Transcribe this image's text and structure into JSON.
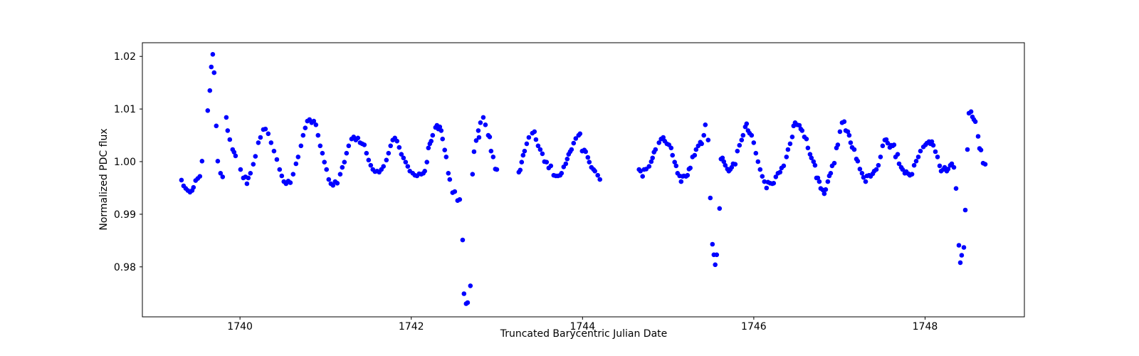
{
  "chart_data": {
    "type": "scatter",
    "title": "",
    "xlabel": "Truncated Barycentric Julian Date",
    "ylabel": "Normalized PDC flux",
    "xlim": [
      1738.86,
      1749.16
    ],
    "ylim": [
      0.9705,
      1.0226
    ],
    "xticks": [
      1740,
      1742,
      1744,
      1746,
      1748
    ],
    "xtick_labels": [
      "1740",
      "1742",
      "1744",
      "1746",
      "1748"
    ],
    "yticks": [
      0.98,
      0.99,
      1.0,
      1.01,
      1.02
    ],
    "ytick_labels": [
      "0.98",
      "0.99",
      "1.00",
      "1.01",
      "1.02"
    ],
    "grid": false,
    "legend": null,
    "marker_color": "#0000ff",
    "background_color": "#ffffff",
    "spine_color": "#000000",
    "points": [
      [
        1739.316,
        0.9965
      ],
      [
        1739.341,
        0.9954
      ],
      [
        1739.366,
        0.9949
      ],
      [
        1739.391,
        0.9945
      ],
      [
        1739.416,
        0.9942
      ],
      [
        1739.441,
        0.9945
      ],
      [
        1739.457,
        0.9951
      ],
      [
        1739.482,
        0.9964
      ],
      [
        1739.507,
        0.9968
      ],
      [
        1739.532,
        0.9972
      ],
      [
        1739.557,
        1.0001
      ],
      [
        1739.623,
        1.0097
      ],
      [
        1739.648,
        1.0135
      ],
      [
        1739.665,
        1.018
      ],
      [
        1739.682,
        1.0204
      ],
      [
        1739.698,
        1.0169
      ],
      [
        1739.723,
        1.0068
      ],
      [
        1739.74,
        1.0001
      ],
      [
        1739.773,
        0.9978
      ],
      [
        1739.798,
        0.9971
      ],
      [
        1739.84,
        1.0084
      ],
      [
        1739.856,
        1.0059
      ],
      [
        1739.881,
        1.0042
      ],
      [
        1739.914,
        1.0023
      ],
      [
        1739.931,
        1.0018
      ],
      [
        1739.948,
        1.0011
      ],
      [
        1740.006,
        0.9985
      ],
      [
        1740.039,
        0.9969
      ],
      [
        1740.064,
        0.9971
      ],
      [
        1740.081,
        0.9958
      ],
      [
        1740.097,
        0.9969
      ],
      [
        1740.122,
        0.9978
      ],
      [
        1740.155,
        0.9995
      ],
      [
        1740.18,
        1.001
      ],
      [
        1740.214,
        1.0036
      ],
      [
        1740.239,
        1.0046
      ],
      [
        1740.272,
        1.0061
      ],
      [
        1740.297,
        1.0062
      ],
      [
        1740.33,
        1.0053
      ],
      [
        1740.363,
        1.0036
      ],
      [
        1740.397,
        1.002
      ],
      [
        1740.43,
        1.0004
      ],
      [
        1740.463,
        0.9985
      ],
      [
        1740.488,
        0.9973
      ],
      [
        1740.513,
        0.9962
      ],
      [
        1740.538,
        0.9958
      ],
      [
        1740.563,
        0.9963
      ],
      [
        1740.588,
        0.996
      ],
      [
        1740.621,
        0.9976
      ],
      [
        1740.654,
        0.9996
      ],
      [
        1740.679,
        1.0009
      ],
      [
        1740.712,
        1.003
      ],
      [
        1740.737,
        1.005
      ],
      [
        1740.762,
        1.0064
      ],
      [
        1740.787,
        1.0077
      ],
      [
        1740.812,
        1.008
      ],
      [
        1740.837,
        1.0074
      ],
      [
        1740.862,
        1.0077
      ],
      [
        1740.887,
        1.007
      ],
      [
        1740.912,
        1.005
      ],
      [
        1740.937,
        1.003
      ],
      [
        1740.962,
        1.0016
      ],
      [
        1740.986,
        0.9999
      ],
      [
        1741.011,
        0.9985
      ],
      [
        1741.036,
        0.9966
      ],
      [
        1741.061,
        0.9958
      ],
      [
        1741.086,
        0.9955
      ],
      [
        1741.111,
        0.9962
      ],
      [
        1741.136,
        0.9959
      ],
      [
        1741.17,
        0.9976
      ],
      [
        1741.194,
        0.9989
      ],
      [
        1741.219,
        0.9999
      ],
      [
        1741.244,
        1.0016
      ],
      [
        1741.269,
        1.003
      ],
      [
        1741.303,
        1.0043
      ],
      [
        1741.327,
        1.0047
      ],
      [
        1741.352,
        1.0041
      ],
      [
        1741.377,
        1.0045
      ],
      [
        1741.402,
        1.0036
      ],
      [
        1741.427,
        1.0034
      ],
      [
        1741.452,
        1.0032
      ],
      [
        1741.477,
        1.0016
      ],
      [
        1741.502,
        1.0003
      ],
      [
        1741.527,
        0.9993
      ],
      [
        1741.552,
        0.9985
      ],
      [
        1741.577,
        0.9981
      ],
      [
        1741.601,
        0.9982
      ],
      [
        1741.626,
        0.998
      ],
      [
        1741.651,
        0.9985
      ],
      [
        1741.676,
        0.9991
      ],
      [
        1741.71,
        1.0003
      ],
      [
        1741.735,
        1.0016
      ],
      [
        1741.759,
        1.003
      ],
      [
        1741.784,
        1.0041
      ],
      [
        1741.809,
        1.0045
      ],
      [
        1741.834,
        1.0039
      ],
      [
        1741.859,
        1.0027
      ],
      [
        1741.884,
        1.0014
      ],
      [
        1741.909,
        1.0007
      ],
      [
        1741.934,
        0.9999
      ],
      [
        1741.959,
        0.9991
      ],
      [
        1741.983,
        0.9982
      ],
      [
        1742.017,
        0.9978
      ],
      [
        1742.042,
        0.9974
      ],
      [
        1742.067,
        0.9973
      ],
      [
        1742.092,
        0.9977
      ],
      [
        1742.117,
        0.9976
      ],
      [
        1742.141,
        0.9978
      ],
      [
        1742.158,
        0.9982
      ],
      [
        1742.183,
        0.9999
      ],
      [
        1742.2,
        1.0026
      ],
      [
        1742.217,
        1.0034
      ],
      [
        1742.233,
        1.0039
      ],
      [
        1742.25,
        1.005
      ],
      [
        1742.283,
        1.0065
      ],
      [
        1742.3,
        1.0069
      ],
      [
        1742.316,
        1.0062
      ],
      [
        1742.333,
        1.0066
      ],
      [
        1742.35,
        1.0059
      ],
      [
        1742.366,
        1.0043
      ],
      [
        1742.391,
        1.0022
      ],
      [
        1742.408,
        1.0009
      ],
      [
        1742.433,
        0.9978
      ],
      [
        1742.45,
        0.9966
      ],
      [
        1742.483,
        0.9941
      ],
      [
        1742.508,
        0.9943
      ],
      [
        1742.541,
        0.9926
      ],
      [
        1742.566,
        0.9928
      ],
      [
        1742.6,
        0.9851
      ],
      [
        1742.616,
        0.9749
      ],
      [
        1742.641,
        0.973
      ],
      [
        1742.658,
        0.9732
      ],
      [
        1742.691,
        0.9764
      ],
      [
        1742.716,
        0.9976
      ],
      [
        1742.733,
        1.0019
      ],
      [
        1742.758,
        1.004
      ],
      [
        1742.783,
        1.0059
      ],
      [
        1742.791,
        1.0046
      ],
      [
        1742.808,
        1.0074
      ],
      [
        1742.841,
        1.0084
      ],
      [
        1742.866,
        1.007
      ],
      [
        1742.899,
        1.005
      ],
      [
        1742.916,
        1.0047
      ],
      [
        1742.932,
        1.002
      ],
      [
        1742.957,
        1.0009
      ],
      [
        1742.982,
        0.9986
      ],
      [
        1742.999,
        0.9985
      ],
      [
        1743.256,
        0.998
      ],
      [
        1743.273,
        0.9984
      ],
      [
        1743.289,
        0.9999
      ],
      [
        1743.306,
        1.0012
      ],
      [
        1743.323,
        1.002
      ],
      [
        1743.348,
        1.0034
      ],
      [
        1743.373,
        1.0046
      ],
      [
        1743.414,
        1.0054
      ],
      [
        1743.439,
        1.0057
      ],
      [
        1743.456,
        1.0042
      ],
      [
        1743.481,
        1.003
      ],
      [
        1743.506,
        1.0023
      ],
      [
        1743.531,
        1.0015
      ],
      [
        1743.555,
        1.0
      ],
      [
        1743.58,
        0.9999
      ],
      [
        1743.605,
        0.9988
      ],
      [
        1743.63,
        0.9992
      ],
      [
        1743.663,
        0.9974
      ],
      [
        1743.688,
        0.9973
      ],
      [
        1743.713,
        0.9973
      ],
      [
        1743.738,
        0.9974
      ],
      [
        1743.755,
        0.9978
      ],
      [
        1743.78,
        0.999
      ],
      [
        1743.805,
        0.9996
      ],
      [
        1743.821,
        1.0005
      ],
      [
        1743.838,
        1.0014
      ],
      [
        1743.855,
        1.0019
      ],
      [
        1743.871,
        1.0023
      ],
      [
        1743.896,
        1.0035
      ],
      [
        1743.921,
        1.0044
      ],
      [
        1743.954,
        1.005
      ],
      [
        1743.971,
        1.0053
      ],
      [
        1743.996,
        1.002
      ],
      [
        1744.021,
        1.0022
      ],
      [
        1744.037,
        1.0019
      ],
      [
        1744.062,
        1.0008
      ],
      [
        1744.079,
        0.9999
      ],
      [
        1744.104,
        0.9989
      ],
      [
        1744.129,
        0.9985
      ],
      [
        1744.145,
        0.9982
      ],
      [
        1744.178,
        0.9974
      ],
      [
        1744.203,
        0.9966
      ],
      [
        1744.66,
        0.9985
      ],
      [
        1744.677,
        0.9982
      ],
      [
        1744.702,
        0.9972
      ],
      [
        1744.719,
        0.9985
      ],
      [
        1744.744,
        0.9986
      ],
      [
        1744.777,
        0.9991
      ],
      [
        1744.802,
        1.0
      ],
      [
        1744.818,
        1.0007
      ],
      [
        1744.835,
        1.0018
      ],
      [
        1744.852,
        1.0023
      ],
      [
        1744.893,
        1.0036
      ],
      [
        1744.918,
        1.0043
      ],
      [
        1744.943,
        1.0046
      ],
      [
        1744.96,
        1.0039
      ],
      [
        1744.985,
        1.0034
      ],
      [
        1745.01,
        1.0032
      ],
      [
        1745.035,
        1.0026
      ],
      [
        1745.051,
        1.0012
      ],
      [
        1745.076,
        0.9999
      ],
      [
        1745.093,
        0.9992
      ],
      [
        1745.11,
        0.9978
      ],
      [
        1745.134,
        0.9973
      ],
      [
        1745.151,
        0.9962
      ],
      [
        1745.168,
        0.9972
      ],
      [
        1745.184,
        0.9973
      ],
      [
        1745.209,
        0.9972
      ],
      [
        1745.226,
        0.9974
      ],
      [
        1745.243,
        0.9986
      ],
      [
        1745.259,
        0.9988
      ],
      [
        1745.284,
        1.0009
      ],
      [
        1745.309,
        1.0012
      ],
      [
        1745.326,
        1.0023
      ],
      [
        1745.351,
        1.003
      ],
      [
        1745.376,
        1.0037
      ],
      [
        1745.392,
        1.0034
      ],
      [
        1745.417,
        1.005
      ],
      [
        1745.434,
        1.007
      ],
      [
        1745.467,
        1.0041
      ],
      [
        1745.492,
        0.9931
      ],
      [
        1745.517,
        0.9843
      ],
      [
        1745.534,
        0.9823
      ],
      [
        1745.55,
        0.9804
      ],
      [
        1745.567,
        0.9823
      ],
      [
        1745.6,
        0.9911
      ],
      [
        1745.617,
        1.0005
      ],
      [
        1745.634,
        1.0007
      ],
      [
        1745.65,
        1.0
      ],
      [
        1745.667,
        0.9993
      ],
      [
        1745.692,
        0.9986
      ],
      [
        1745.708,
        0.9982
      ],
      [
        1745.725,
        0.9985
      ],
      [
        1745.742,
        0.9989
      ],
      [
        1745.758,
        0.9996
      ],
      [
        1745.783,
        0.9995
      ],
      [
        1745.808,
        1.002
      ],
      [
        1745.833,
        1.0031
      ],
      [
        1745.858,
        1.0041
      ],
      [
        1745.875,
        1.005
      ],
      [
        1745.9,
        1.0066
      ],
      [
        1745.916,
        1.0072
      ],
      [
        1745.933,
        1.0059
      ],
      [
        1745.95,
        1.0054
      ],
      [
        1745.974,
        1.005
      ],
      [
        1745.999,
        1.0036
      ],
      [
        1746.024,
        1.0016
      ],
      [
        1746.049,
        1.0
      ],
      [
        1746.074,
        0.9985
      ],
      [
        1746.099,
        0.9972
      ],
      [
        1746.124,
        0.9962
      ],
      [
        1746.149,
        0.995
      ],
      [
        1746.166,
        0.9961
      ],
      [
        1746.191,
        0.9959
      ],
      [
        1746.216,
        0.9958
      ],
      [
        1746.232,
        0.9959
      ],
      [
        1746.257,
        0.9971
      ],
      [
        1746.282,
        0.9978
      ],
      [
        1746.307,
        0.998
      ],
      [
        1746.324,
        0.9988
      ],
      [
        1746.349,
        0.9992
      ],
      [
        1746.382,
        1.0009
      ],
      [
        1746.399,
        1.0023
      ],
      [
        1746.424,
        1.0034
      ],
      [
        1746.449,
        1.0047
      ],
      [
        1746.465,
        1.0068
      ],
      [
        1746.482,
        1.0074
      ],
      [
        1746.507,
        1.007
      ],
      [
        1746.532,
        1.0069
      ],
      [
        1746.549,
        1.0062
      ],
      [
        1746.565,
        1.0059
      ],
      [
        1746.59,
        1.0047
      ],
      [
        1746.615,
        1.0043
      ],
      [
        1746.632,
        1.0026
      ],
      [
        1746.657,
        1.0014
      ],
      [
        1746.673,
        1.0007
      ],
      [
        1746.698,
        1.0
      ],
      [
        1746.715,
        0.9993
      ],
      [
        1746.732,
        0.9969
      ],
      [
        1746.748,
        0.9969
      ],
      [
        1746.765,
        0.9962
      ],
      [
        1746.782,
        0.9949
      ],
      [
        1746.807,
        0.9946
      ],
      [
        1746.823,
        0.9939
      ],
      [
        1746.84,
        0.9947
      ],
      [
        1746.865,
        0.9962
      ],
      [
        1746.881,
        0.9973
      ],
      [
        1746.898,
        0.9978
      ],
      [
        1746.915,
        0.9992
      ],
      [
        1746.94,
        0.9997
      ],
      [
        1746.965,
        1.0026
      ],
      [
        1746.981,
        1.0032
      ],
      [
        1747.006,
        1.0057
      ],
      [
        1747.031,
        1.0074
      ],
      [
        1747.056,
        1.0076
      ],
      [
        1747.073,
        1.0059
      ],
      [
        1747.098,
        1.0057
      ],
      [
        1747.114,
        1.005
      ],
      [
        1747.131,
        1.0036
      ],
      [
        1747.148,
        1.0027
      ],
      [
        1747.173,
        1.0023
      ],
      [
        1747.198,
        1.0005
      ],
      [
        1747.214,
        1.0001
      ],
      [
        1747.239,
        0.9986
      ],
      [
        1747.264,
        0.9978
      ],
      [
        1747.281,
        0.997
      ],
      [
        1747.306,
        0.9962
      ],
      [
        1747.322,
        0.9973
      ],
      [
        1747.347,
        0.9974
      ],
      [
        1747.364,
        0.9972
      ],
      [
        1747.389,
        0.9977
      ],
      [
        1747.406,
        0.9982
      ],
      [
        1747.431,
        0.9985
      ],
      [
        1747.455,
        0.9993
      ],
      [
        1747.48,
        1.0009
      ],
      [
        1747.505,
        1.003
      ],
      [
        1747.53,
        1.0041
      ],
      [
        1747.547,
        1.0042
      ],
      [
        1747.564,
        1.0035
      ],
      [
        1747.589,
        1.0027
      ],
      [
        1747.605,
        1.0031
      ],
      [
        1747.622,
        1.003
      ],
      [
        1747.638,
        1.0032
      ],
      [
        1747.655,
        1.0009
      ],
      [
        1747.68,
        1.0014
      ],
      [
        1747.697,
        0.9996
      ],
      [
        1747.722,
        0.9989
      ],
      [
        1747.738,
        0.9985
      ],
      [
        1747.763,
        0.9978
      ],
      [
        1747.78,
        0.9981
      ],
      [
        1747.805,
        0.9977
      ],
      [
        1747.822,
        0.9974
      ],
      [
        1747.847,
        0.9976
      ],
      [
        1747.872,
        0.9993
      ],
      [
        1747.896,
        1.0001
      ],
      [
        1747.921,
        1.0009
      ],
      [
        1747.946,
        1.002
      ],
      [
        1747.98,
        1.0028
      ],
      [
        1748.005,
        1.0032
      ],
      [
        1748.021,
        1.0035
      ],
      [
        1748.046,
        1.0038
      ],
      [
        1748.063,
        1.0034
      ],
      [
        1748.079,
        1.0038
      ],
      [
        1748.096,
        1.0031
      ],
      [
        1748.121,
        1.0019
      ],
      [
        1748.146,
        1.0009
      ],
      [
        1748.171,
        0.9992
      ],
      [
        1748.187,
        0.9982
      ],
      [
        1748.212,
        0.9985
      ],
      [
        1748.229,
        0.9989
      ],
      [
        1748.254,
        0.9982
      ],
      [
        1748.27,
        0.9986
      ],
      [
        1748.295,
        0.9993
      ],
      [
        1748.312,
        0.9996
      ],
      [
        1748.337,
        0.9989
      ],
      [
        1748.362,
        0.9949
      ],
      [
        1748.395,
        0.9841
      ],
      [
        1748.412,
        0.9808
      ],
      [
        1748.428,
        0.9822
      ],
      [
        1748.453,
        0.9837
      ],
      [
        1748.47,
        0.9908
      ],
      [
        1748.495,
        1.0023
      ],
      [
        1748.512,
        1.0092
      ],
      [
        1748.537,
        1.0095
      ],
      [
        1748.553,
        1.0085
      ],
      [
        1748.57,
        1.008
      ],
      [
        1748.587,
        1.0076
      ],
      [
        1748.62,
        1.0048
      ],
      [
        1748.636,
        1.0025
      ],
      [
        1748.653,
        1.0022
      ],
      [
        1748.678,
        0.9997
      ],
      [
        1748.703,
        0.9995
      ]
    ]
  }
}
